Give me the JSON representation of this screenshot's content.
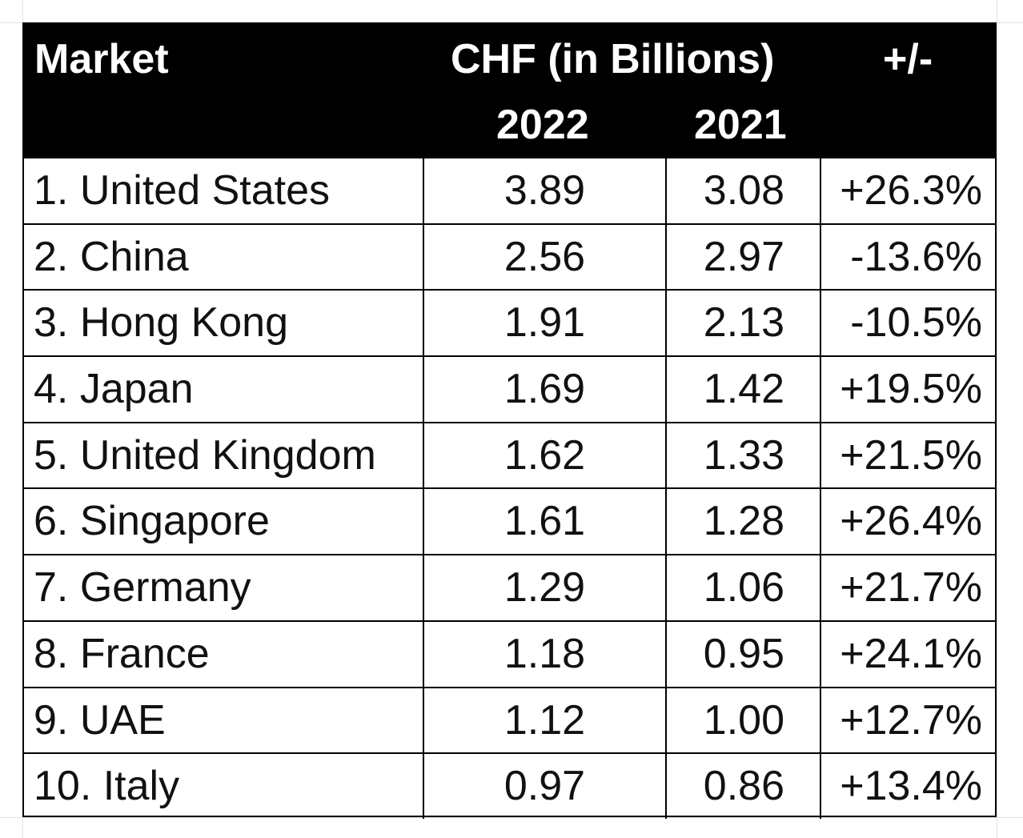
{
  "chart_data": {
    "type": "table",
    "header": {
      "market": "Market",
      "currency": "CHF (in Billions)",
      "change": "+/-",
      "year_2022": "2022",
      "year_2021": "2021"
    },
    "rows": [
      {
        "market": "1. United States",
        "v2022": "3.89",
        "v2021": "3.08",
        "change": "+26.3%"
      },
      {
        "market": "2. China",
        "v2022": "2.56",
        "v2021": "2.97",
        "change": "-13.6%"
      },
      {
        "market": "3. Hong Kong",
        "v2022": "1.91",
        "v2021": "2.13",
        "change": "-10.5%"
      },
      {
        "market": "4. Japan",
        "v2022": "1.69",
        "v2021": "1.42",
        "change": "+19.5%"
      },
      {
        "market": "5. United Kingdom",
        "v2022": "1.62",
        "v2021": "1.33",
        "change": "+21.5%"
      },
      {
        "market": "6. Singapore",
        "v2022": "1.61",
        "v2021": "1.28",
        "change": "+26.4%"
      },
      {
        "market": "7. Germany",
        "v2022": "1.29",
        "v2021": "1.06",
        "change": "+21.7%"
      },
      {
        "market": "8. France",
        "v2022": "1.18",
        "v2021": "0.95",
        "change": "+24.1%"
      },
      {
        "market": "9. UAE",
        "v2022": "1.12",
        "v2021": "1.00",
        "change": "+12.7%"
      },
      {
        "market": "10. Italy",
        "v2022": "0.97",
        "v2021": "0.86",
        "change": "+13.4%"
      }
    ]
  },
  "colors": {
    "header_background": "#000000",
    "header_text": "#ffffff",
    "border": "#000000"
  }
}
